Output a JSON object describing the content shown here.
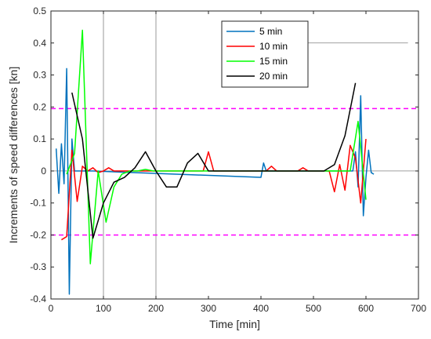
{
  "chart_data": {
    "type": "line",
    "title": "",
    "xlabel": "Time [min]",
    "ylabel": "Increments of speed differences [kn]",
    "xlim": [
      0,
      700
    ],
    "ylim": [
      -0.4,
      0.5
    ],
    "xticks": [
      0,
      100,
      200,
      300,
      400,
      500,
      600,
      700
    ],
    "xtick_labels": [
      "0",
      "100",
      "200",
      "300",
      "400",
      "500",
      "600",
      "700"
    ],
    "yticks": [
      -0.4,
      -0.3,
      -0.2,
      -0.1,
      0,
      0.1,
      0.2,
      0.3,
      0.4,
      0.5
    ],
    "ytick_labels": [
      "-0.4",
      "-0.3",
      "-0.2",
      "-0.1",
      "0",
      "0.1",
      "0.2",
      "0.3",
      "0.4",
      "0.5"
    ],
    "grid": false,
    "legend_position": "top-right",
    "reference_lines": [
      {
        "orientation": "vertical",
        "x": 100,
        "color": "#808080"
      },
      {
        "orientation": "vertical",
        "x": 200,
        "color": "#808080"
      },
      {
        "orientation": "horizontal",
        "y": 0.4,
        "color": "#808080",
        "x_range": [
          400,
          680
        ]
      },
      {
        "orientation": "horizontal",
        "y": 0,
        "color": "#808080"
      },
      {
        "orientation": "horizontal",
        "y": 0.195,
        "color": "#ff00ff",
        "style": "dashed"
      },
      {
        "orientation": "horizontal",
        "y": -0.2,
        "color": "#ff00ff",
        "style": "dashed"
      }
    ],
    "series": [
      {
        "name": "5 min",
        "color": "#0072BD",
        "x": [
          10,
          15,
          20,
          25,
          30,
          35,
          40,
          45,
          50,
          55,
          60,
          65,
          70,
          75,
          80,
          400,
          405,
          410,
          575,
          580,
          585,
          590,
          595,
          600,
          605,
          610,
          615
        ],
        "y": [
          0.07,
          -0.07,
          0.085,
          -0.04,
          0.32,
          -0.385,
          0.1,
          0,
          0,
          0,
          0,
          0,
          0,
          0,
          0,
          -0.02,
          0.025,
          0,
          0,
          0.06,
          -0.05,
          0.235,
          -0.14,
          -0.02,
          0.065,
          -0.005,
          -0.01
        ]
      },
      {
        "name": "10 min",
        "color": "#FF0000",
        "x": [
          20,
          30,
          40,
          50,
          60,
          70,
          80,
          90,
          100,
          110,
          120,
          130,
          140,
          290,
          300,
          310,
          320,
          410,
          420,
          430,
          440,
          450,
          460,
          470,
          480,
          490,
          500,
          510,
          520,
          530,
          540,
          550,
          560,
          570,
          580,
          590,
          600
        ],
        "y": [
          -0.215,
          -0.205,
          0.065,
          -0.095,
          0.015,
          0,
          0.01,
          -0.005,
          0,
          0.01,
          0,
          0,
          0,
          0,
          0.06,
          0,
          0,
          0,
          0.015,
          0,
          0,
          0,
          0,
          0,
          0.01,
          0,
          0,
          0,
          0,
          0,
          -0.065,
          0.02,
          -0.06,
          0.08,
          0.04,
          -0.1,
          0.1
        ]
      },
      {
        "name": "15 min",
        "color": "#00FF00",
        "x": [
          30,
          45,
          60,
          75,
          90,
          105,
          120,
          135,
          150,
          165,
          180,
          195,
          210,
          555,
          570,
          585,
          600
        ],
        "y": [
          -0.01,
          0.055,
          0.44,
          -0.29,
          0,
          -0.16,
          -0.05,
          -0.01,
          0,
          0,
          0.005,
          0,
          0,
          0,
          0,
          0.155,
          -0.09
        ]
      },
      {
        "name": "20 min",
        "color": "#000000",
        "x": [
          40,
          60,
          80,
          100,
          120,
          140,
          160,
          180,
          200,
          220,
          240,
          260,
          280,
          300,
          320,
          340,
          360,
          380,
          400,
          420,
          440,
          460,
          480,
          500,
          520,
          540,
          560,
          580
        ],
        "y": [
          0.245,
          0.1,
          -0.21,
          -0.1,
          -0.035,
          -0.02,
          0.01,
          0.06,
          0,
          -0.05,
          -0.05,
          0.025,
          0.055,
          0,
          0,
          0,
          0,
          0,
          0,
          0,
          0,
          0,
          0,
          0,
          0,
          0.02,
          0.11,
          0.275
        ]
      }
    ]
  }
}
